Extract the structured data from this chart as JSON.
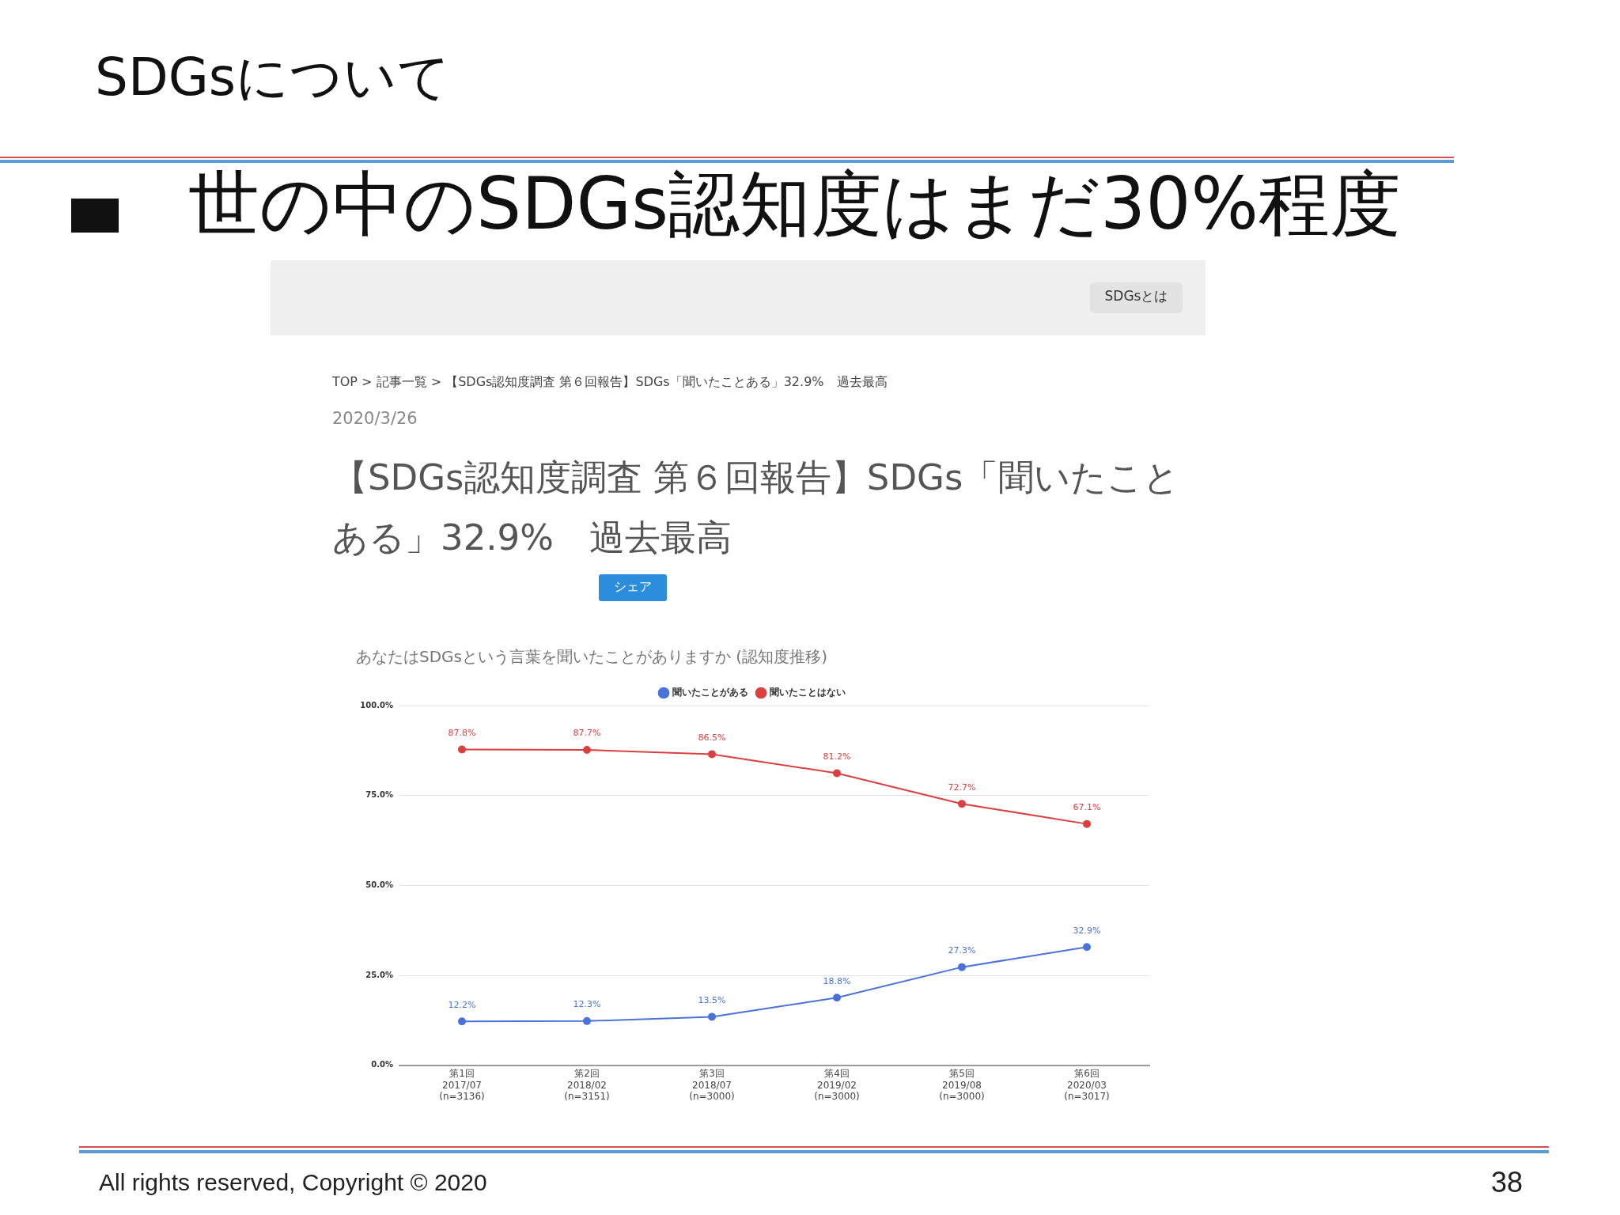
{
  "chart_data": {
    "type": "line",
    "title": "あなたはSDGsという言葉を聞いたことがありますか (認知度推移)",
    "categories": [
      "第1回\n2017/07\n(n=3136)",
      "第2回\n2018/02\n(n=3151)",
      "第3回\n2018/07\n(n=3000)",
      "第4回\n2019/02\n(n=3000)",
      "第5回\n2019/08\n(n=3000)",
      "第6回\n2020/03\n(n=3017)"
    ],
    "series": [
      {
        "name": "聞いたことがある",
        "color": "#4a72d8",
        "values": [
          12.2,
          12.3,
          13.5,
          18.8,
          27.3,
          32.9
        ],
        "value_labels": [
          "12.2%",
          "12.3%",
          "13.5%",
          "18.8%",
          "27.3%",
          "32.9%"
        ]
      },
      {
        "name": "聞いたことはない",
        "color": "#db4040",
        "values": [
          87.8,
          87.7,
          86.5,
          81.2,
          72.7,
          67.1
        ],
        "value_labels": [
          "87.8%",
          "87.7%",
          "86.5%",
          "81.2%",
          "72.7%",
          "67.1%"
        ]
      }
    ],
    "ylim": [
      0,
      100
    ],
    "yticks": [
      {
        "value": 0,
        "label": "0.0%"
      },
      {
        "value": 25,
        "label": "25.0%"
      },
      {
        "value": 50,
        "label": "50.0%"
      },
      {
        "value": 75,
        "label": "75.0%"
      },
      {
        "value": 100,
        "label": "100.0%"
      }
    ],
    "grid": "y",
    "legend": "top",
    "marker": "circle",
    "annotations": [
      "SDGsについて",
      "世の中のSDGs認知度はまだ30%程度",
      "SDGsとは",
      "TOP  >  記事一覧  >  【SDGs認知度調査 第６回報告】SDGs「聞いたことある」32.9%　過去最高",
      "2020/3/26",
      "【SDGs認知度調査 第６回報告】SDGs「聞いたことある」32.9%　過去最高",
      "シェア",
      "All rights reserved, Copyright © 2020",
      "38"
    ]
  }
}
